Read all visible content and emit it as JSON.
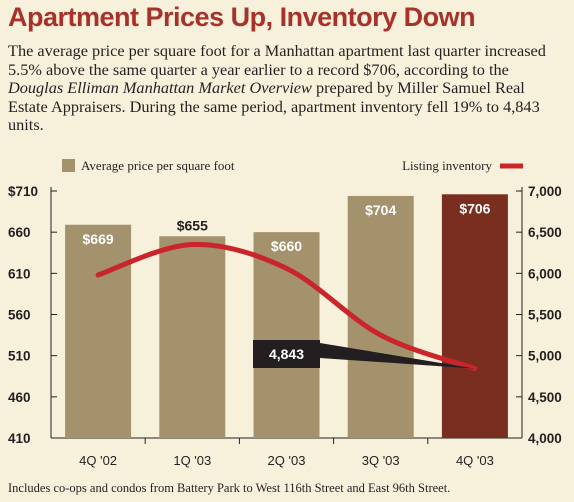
{
  "title": "Apartment Prices Up, Inventory Down",
  "description": {
    "part1": "The average price per square foot for a Manhattan apartment last quarter increased 5.5% above the same quarter a year earlier to a record $706, according to the ",
    "source_italic": "Douglas Elliman Manhattan Market Overview",
    "part2": " prepared by Miller Samuel Real Estate Appraisers. During the same period, apartment inventory fell 19% to 4,843 units."
  },
  "footnote": "Includes co-ops and condos from Battery Park to West 116th Street and East 96th Street.",
  "colors": {
    "title": "#a8322a",
    "bar": "#a3926b",
    "bar_highlight": "#7a2e1f",
    "line": "#c9252b",
    "callout": "#231f20",
    "background": "#f7f1dc"
  },
  "chart_data": {
    "type": "bar",
    "categories": [
      "4Q '02",
      "1Q '03",
      "2Q '03",
      "3Q '03",
      "4Q '03"
    ],
    "series": [
      {
        "name": "Average price per square foot",
        "type": "bar",
        "axis": "left",
        "values": [
          669,
          655,
          660,
          704,
          706
        ],
        "labels": [
          "$669",
          "$655",
          "$660",
          "$704",
          "$706"
        ]
      },
      {
        "name": "Listing inventory",
        "type": "line",
        "axis": "right",
        "values": [
          5980,
          6350,
          6060,
          5250,
          4843
        ]
      }
    ],
    "y_left": {
      "range": [
        410,
        710
      ],
      "ticks": [
        410,
        460,
        510,
        560,
        610,
        660,
        710
      ],
      "tick_labels": [
        "410",
        "460",
        "510",
        "560",
        "610",
        "660",
        "$710"
      ]
    },
    "y_right": {
      "range": [
        4000,
        7000
      ],
      "ticks": [
        4000,
        4500,
        5000,
        5500,
        6000,
        6500,
        7000
      ],
      "tick_labels": [
        "4,000",
        "4,500",
        "5,000",
        "5,500",
        "6,000",
        "6,500",
        "7,000"
      ]
    },
    "annotation": "4,843",
    "legend_position": "top",
    "grid": false
  }
}
